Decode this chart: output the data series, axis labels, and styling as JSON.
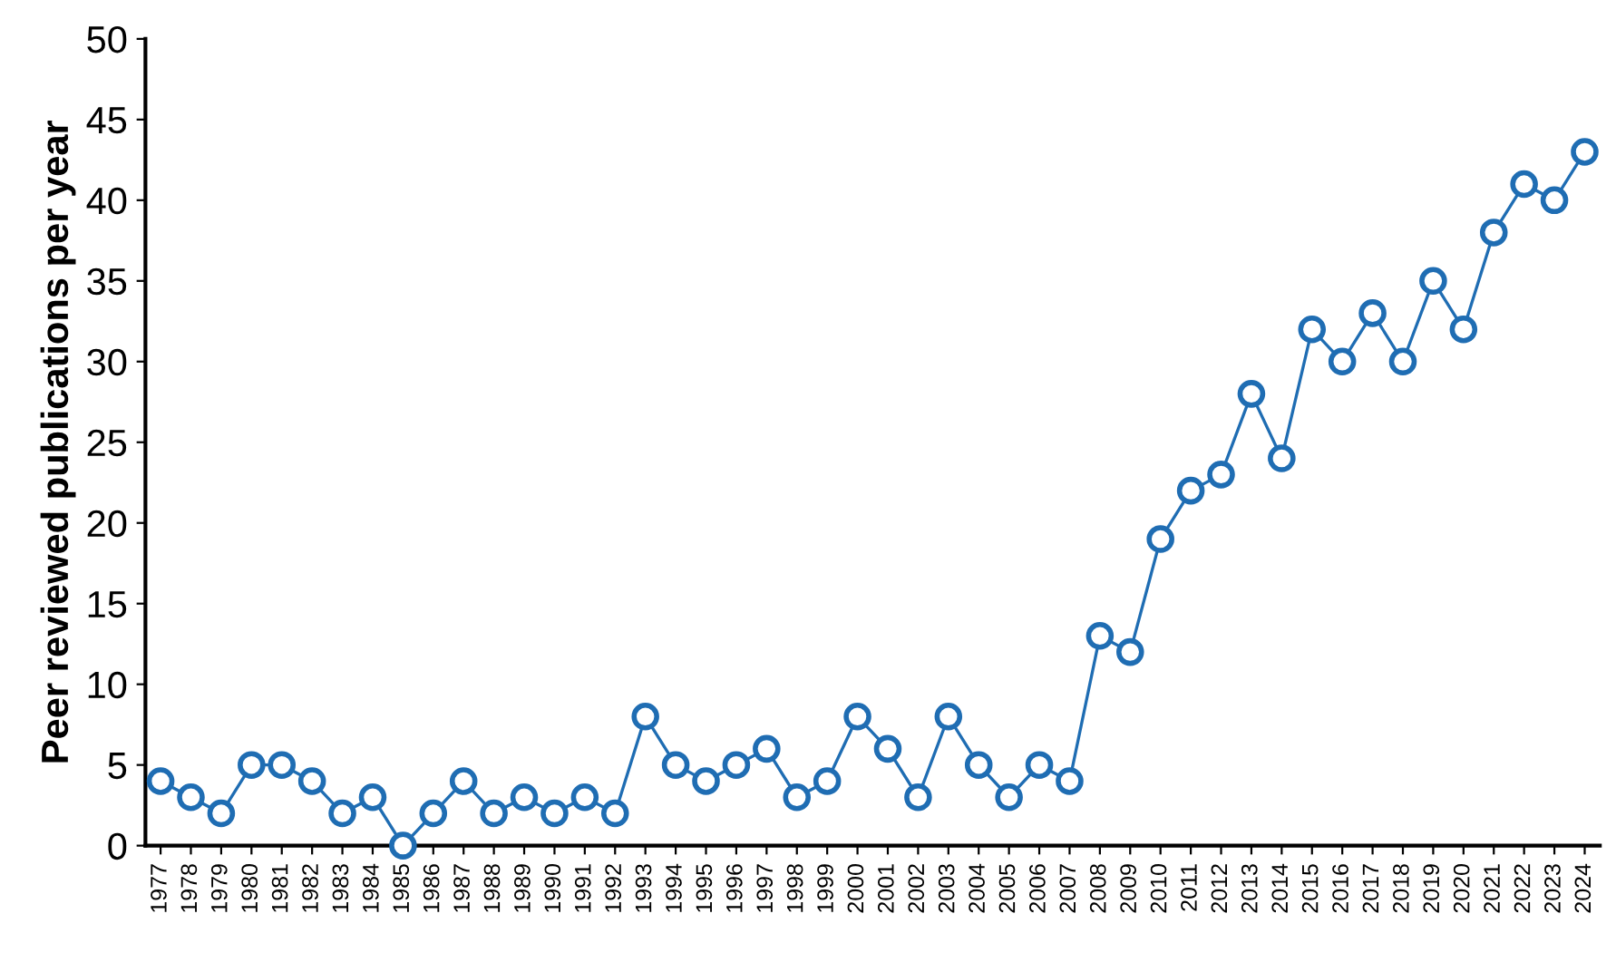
{
  "chart_data": {
    "type": "line",
    "ylabel": "Peer reviewed publications per year",
    "categories": [
      "1977",
      "1978",
      "1979",
      "1980",
      "1981",
      "1982",
      "1983",
      "1984",
      "1985",
      "1986",
      "1987",
      "1988",
      "1989",
      "1990",
      "1991",
      "1992",
      "1993",
      "1994",
      "1995",
      "1996",
      "1997",
      "1998",
      "1999",
      "2000",
      "2001",
      "2002",
      "2003",
      "2004",
      "2005",
      "2006",
      "2007",
      "2008",
      "2009",
      "2010",
      "2011",
      "2012",
      "2013",
      "2014",
      "2015",
      "2016",
      "2017",
      "2018",
      "2019",
      "2020",
      "2021",
      "2022",
      "2023",
      "2024"
    ],
    "series": [
      {
        "color": "#1f6db3",
        "values": [
          4,
          3,
          2,
          5,
          5,
          4,
          2,
          3,
          0,
          2,
          4,
          2,
          3,
          2,
          3,
          2,
          8,
          5,
          4,
          5,
          6,
          3,
          4,
          8,
          6,
          3,
          8,
          5,
          3,
          5,
          4,
          13,
          12,
          19,
          22,
          23,
          28,
          24,
          32,
          30,
          33,
          30,
          35,
          32,
          38,
          41,
          40,
          43
        ]
      }
    ],
    "ylim": [
      0,
      50
    ],
    "yticks": [
      0,
      5,
      10,
      15,
      20,
      25,
      30,
      35,
      40,
      45,
      50
    ],
    "grid": false,
    "marker": "circle",
    "line_style": "solid"
  }
}
